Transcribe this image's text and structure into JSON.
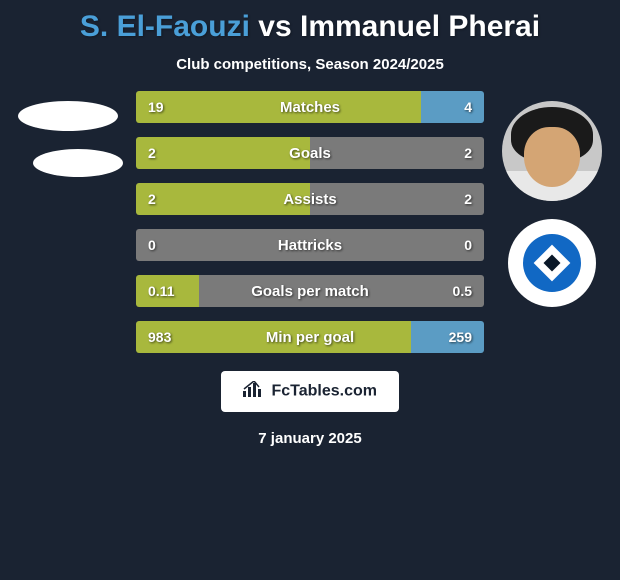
{
  "title": {
    "player1": "S. El-Faouzi",
    "vs": "vs",
    "player2": "Immanuel Pherai"
  },
  "subtitle": "Club competitions, Season 2024/2025",
  "colors": {
    "player1_bar": "#a8b83d",
    "player2_bar": "#5b9cc4",
    "neutral_bar": "#7a7a7a",
    "background": "#1a2332",
    "title_p1": "#4a9fd8"
  },
  "stats": [
    {
      "label": "Matches",
      "left_val": "19",
      "right_val": "4",
      "left_pct": 82,
      "right_pct": 18,
      "left_color": "#a8b83d",
      "right_color": "#5b9cc4"
    },
    {
      "label": "Goals",
      "left_val": "2",
      "right_val": "2",
      "left_pct": 50,
      "right_pct": 50,
      "left_color": "#a8b83d",
      "right_color": "#7a7a7a"
    },
    {
      "label": "Assists",
      "left_val": "2",
      "right_val": "2",
      "left_pct": 50,
      "right_pct": 50,
      "left_color": "#a8b83d",
      "right_color": "#7a7a7a"
    },
    {
      "label": "Hattricks",
      "left_val": "0",
      "right_val": "0",
      "left_pct": 50,
      "right_pct": 50,
      "left_color": "#7a7a7a",
      "right_color": "#7a7a7a"
    },
    {
      "label": "Goals per match",
      "left_val": "0.11",
      "right_val": "0.5",
      "left_pct": 18,
      "right_pct": 82,
      "left_color": "#a8b83d",
      "right_color": "#7a7a7a"
    },
    {
      "label": "Min per goal",
      "left_val": "983",
      "right_val": "259",
      "left_pct": 79,
      "right_pct": 21,
      "left_color": "#a8b83d",
      "right_color": "#5b9cc4"
    }
  ],
  "footer": {
    "brand": "FcTables.com",
    "date": "7 january 2025"
  },
  "club_badge": {
    "bg": "#ffffff",
    "inner_bg": "#1168c4",
    "diamond": "#ffffff",
    "diamond_inner": "#0a1828"
  }
}
